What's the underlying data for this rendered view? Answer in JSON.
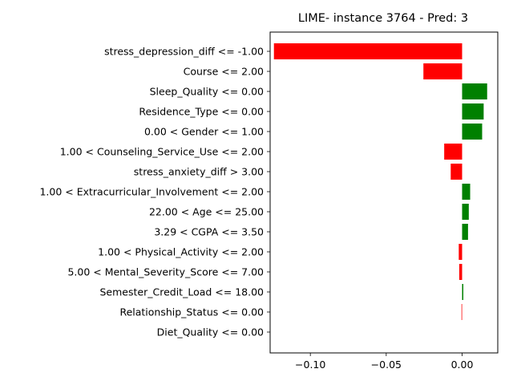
{
  "chart_data": {
    "type": "bar",
    "orientation": "horizontal",
    "title": "LIME- instance 3764 - Pred: 3",
    "xlabel": "",
    "ylabel": "",
    "xlim": [
      -0.1265,
      0.0235
    ],
    "xticks": [
      -0.1,
      -0.05,
      0.0
    ],
    "xtick_labels": [
      "−0.10",
      "−0.05",
      "0.00"
    ],
    "grid": false,
    "categories": [
      "stress_depression_diff <= -1.00",
      "Course <= 2.00",
      "Sleep_Quality <= 0.00",
      "Residence_Type <= 0.00",
      "0.00 < Gender <= 1.00",
      "1.00 < Counseling_Service_Use <= 2.00",
      "stress_anxiety_diff > 3.00",
      "1.00 < Extracurricular_Involvement <= 2.00",
      "22.00 < Age <= 25.00",
      "3.29 < CGPA <= 3.50",
      "1.00 < Physical_Activity <= 2.00",
      "5.00 < Mental_Severity_Score <= 7.00",
      "Semester_Credit_Load <= 18.00",
      "Relationship_Status <= 0.00",
      "Diet_Quality <= 0.00"
    ],
    "values": [
      -0.124,
      -0.0255,
      0.0165,
      0.0142,
      0.0132,
      -0.0118,
      -0.0075,
      0.0053,
      0.0044,
      0.0039,
      -0.0022,
      -0.0019,
      0.0008,
      -0.0004,
      0.0
    ],
    "colors": {
      "positive": "#008000",
      "negative": "#ff0000"
    }
  }
}
